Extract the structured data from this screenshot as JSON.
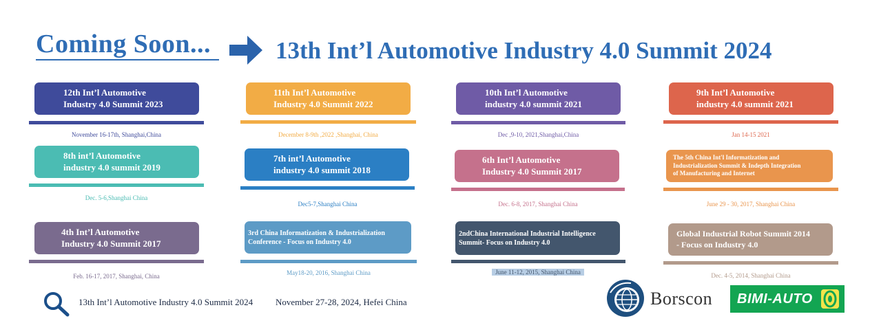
{
  "header": {
    "coming_soon": "Coming Soon...",
    "headline": "13th Int’l Automotive Industry 4.0 Summit 2024",
    "headline_color": "#2f6db5"
  },
  "events": [
    {
      "title": "12th Int’l Automotive\nIndustry 4.0 Summit 2023",
      "date": "November 16-17th, Shanghai,China",
      "color": "#3f4b9b"
    },
    {
      "title": "11th Int’l Automotive\nIndustry 4.0 Summit 2022",
      "date": "December 8-9th ,2022 ,Shanghai, China",
      "color": "#f2ac45"
    },
    {
      "title": "10th Int’l Automotive\nindustry 4.0 summit 2021",
      "date": "Dec ,9-10, 2021,Shanghai,China",
      "color": "#6f5ba6"
    },
    {
      "title": "9th Int’l Automotive\nindustry 4.0 summit 2021",
      "date": "Jan 14-15 2021",
      "color": "#dd654c"
    },
    {
      "title": "8th int’l Automotive\nindustry 4.0 summit 2019",
      "date": "Dec. 5-6,Shanghai China",
      "color": "#4bbcb3"
    },
    {
      "title": "7th int’l Automotive\nindustry 4.0 summit 2018",
      "date": "Dec5-7,Shanghai China",
      "color": "#2b7fc4"
    },
    {
      "title": "6th Int’l Automotive\nIndustry 4.0 Summit 2017",
      "date": "Dec. 6-8, 2017, Shanghai China",
      "color": "#c5718c"
    },
    {
      "title": "The 5th China Int'l Informatization and\nIndustrialization Summit & Indepth Integration\nof Manufacturing and Internet",
      "date": "June 29 - 30, 2017, Shanghai China",
      "color": "#e9954d"
    },
    {
      "title": "4th Int’l Automotive\nIndustry 4.0 Summit 2017",
      "date": "Feb. 16-17, 2017, Shanghai,  China",
      "color": "#7a6b8e"
    },
    {
      "title": "3rd China Informatization & Industrialization\nConference - Focus on Industry 4.0",
      "date": "May18-20, 2016, Shanghai China",
      "color": "#5d9bc6"
    },
    {
      "title": "2ndChina International Industrial Intelligence\nSummit- Focus on Industry 4.0",
      "date": "June 11-12, 2015, Shanghai China",
      "color": "#43566d"
    },
    {
      "title": "Global Industrial Robot Summit 2014\n- Focus on Industry 4.0",
      "date": "Dec. 4-5, 2014, Shanghai China",
      "color": "#b29a8b"
    }
  ],
  "footer": {
    "summit_name": "13th Int’l Automotive Industry 4.0 Summit 2024",
    "summit_date": "November 27-28, 2024, Hefei China",
    "icon": "search-icon",
    "logo_1": "Borscon",
    "logo_2": "BIMI-AUTO"
  }
}
